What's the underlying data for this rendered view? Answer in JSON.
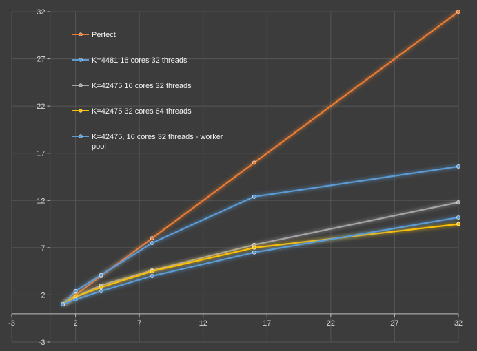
{
  "chart_data": {
    "type": "scatter",
    "mode": "lines+markers",
    "title": "",
    "xlabel": "",
    "ylabel": "",
    "xlim": [
      -3,
      32
    ],
    "ylim": [
      -3,
      32
    ],
    "xticks": [
      -3,
      2,
      7,
      12,
      17,
      22,
      27,
      32
    ],
    "yticks": [
      -3,
      2,
      7,
      12,
      17,
      22,
      27,
      32
    ],
    "xtick_labels": [
      "-3",
      "2",
      "7",
      "12",
      "17",
      "22",
      "27",
      "32"
    ],
    "ytick_labels": [
      "-3",
      "2",
      "7",
      "12",
      "17",
      "22",
      "27",
      "32"
    ],
    "grid": true,
    "legend_position": "top-left",
    "series": [
      {
        "name": "Perfect",
        "color": "#ed7d31",
        "x": [
          1,
          2,
          4,
          8,
          16,
          32
        ],
        "y": [
          1,
          2,
          4,
          8,
          16,
          32
        ]
      },
      {
        "name": "K=4481 16 cores 32 threads",
        "color": "#5b9bd5",
        "x": [
          1,
          2,
          4,
          8,
          16,
          32
        ],
        "y": [
          1,
          2.4,
          4.1,
          7.5,
          12.4,
          15.6
        ]
      },
      {
        "name": "K=42475 16 cores 32 threads",
        "color": "#a5a5a5",
        "x": [
          1,
          2,
          4,
          8,
          16,
          32
        ],
        "y": [
          1,
          1.8,
          3.0,
          4.6,
          7.3,
          11.8
        ]
      },
      {
        "name": "K=42475 32 cores 64 threads",
        "color": "#ffc000",
        "x": [
          1,
          2,
          4,
          8,
          16,
          32
        ],
        "y": [
          1,
          1.8,
          2.8,
          4.5,
          7.0,
          9.5
        ]
      },
      {
        "name": "K=42475, 16 cores 32 threads - worker pool",
        "legend_lines": [
          "K=42475, 16 cores 32 threads - worker",
          "pool"
        ],
        "color": "#5b9bd5",
        "x": [
          1,
          2,
          4,
          8,
          16,
          32
        ],
        "y": [
          1,
          1.5,
          2.4,
          4.0,
          6.5,
          10.2
        ]
      }
    ]
  }
}
